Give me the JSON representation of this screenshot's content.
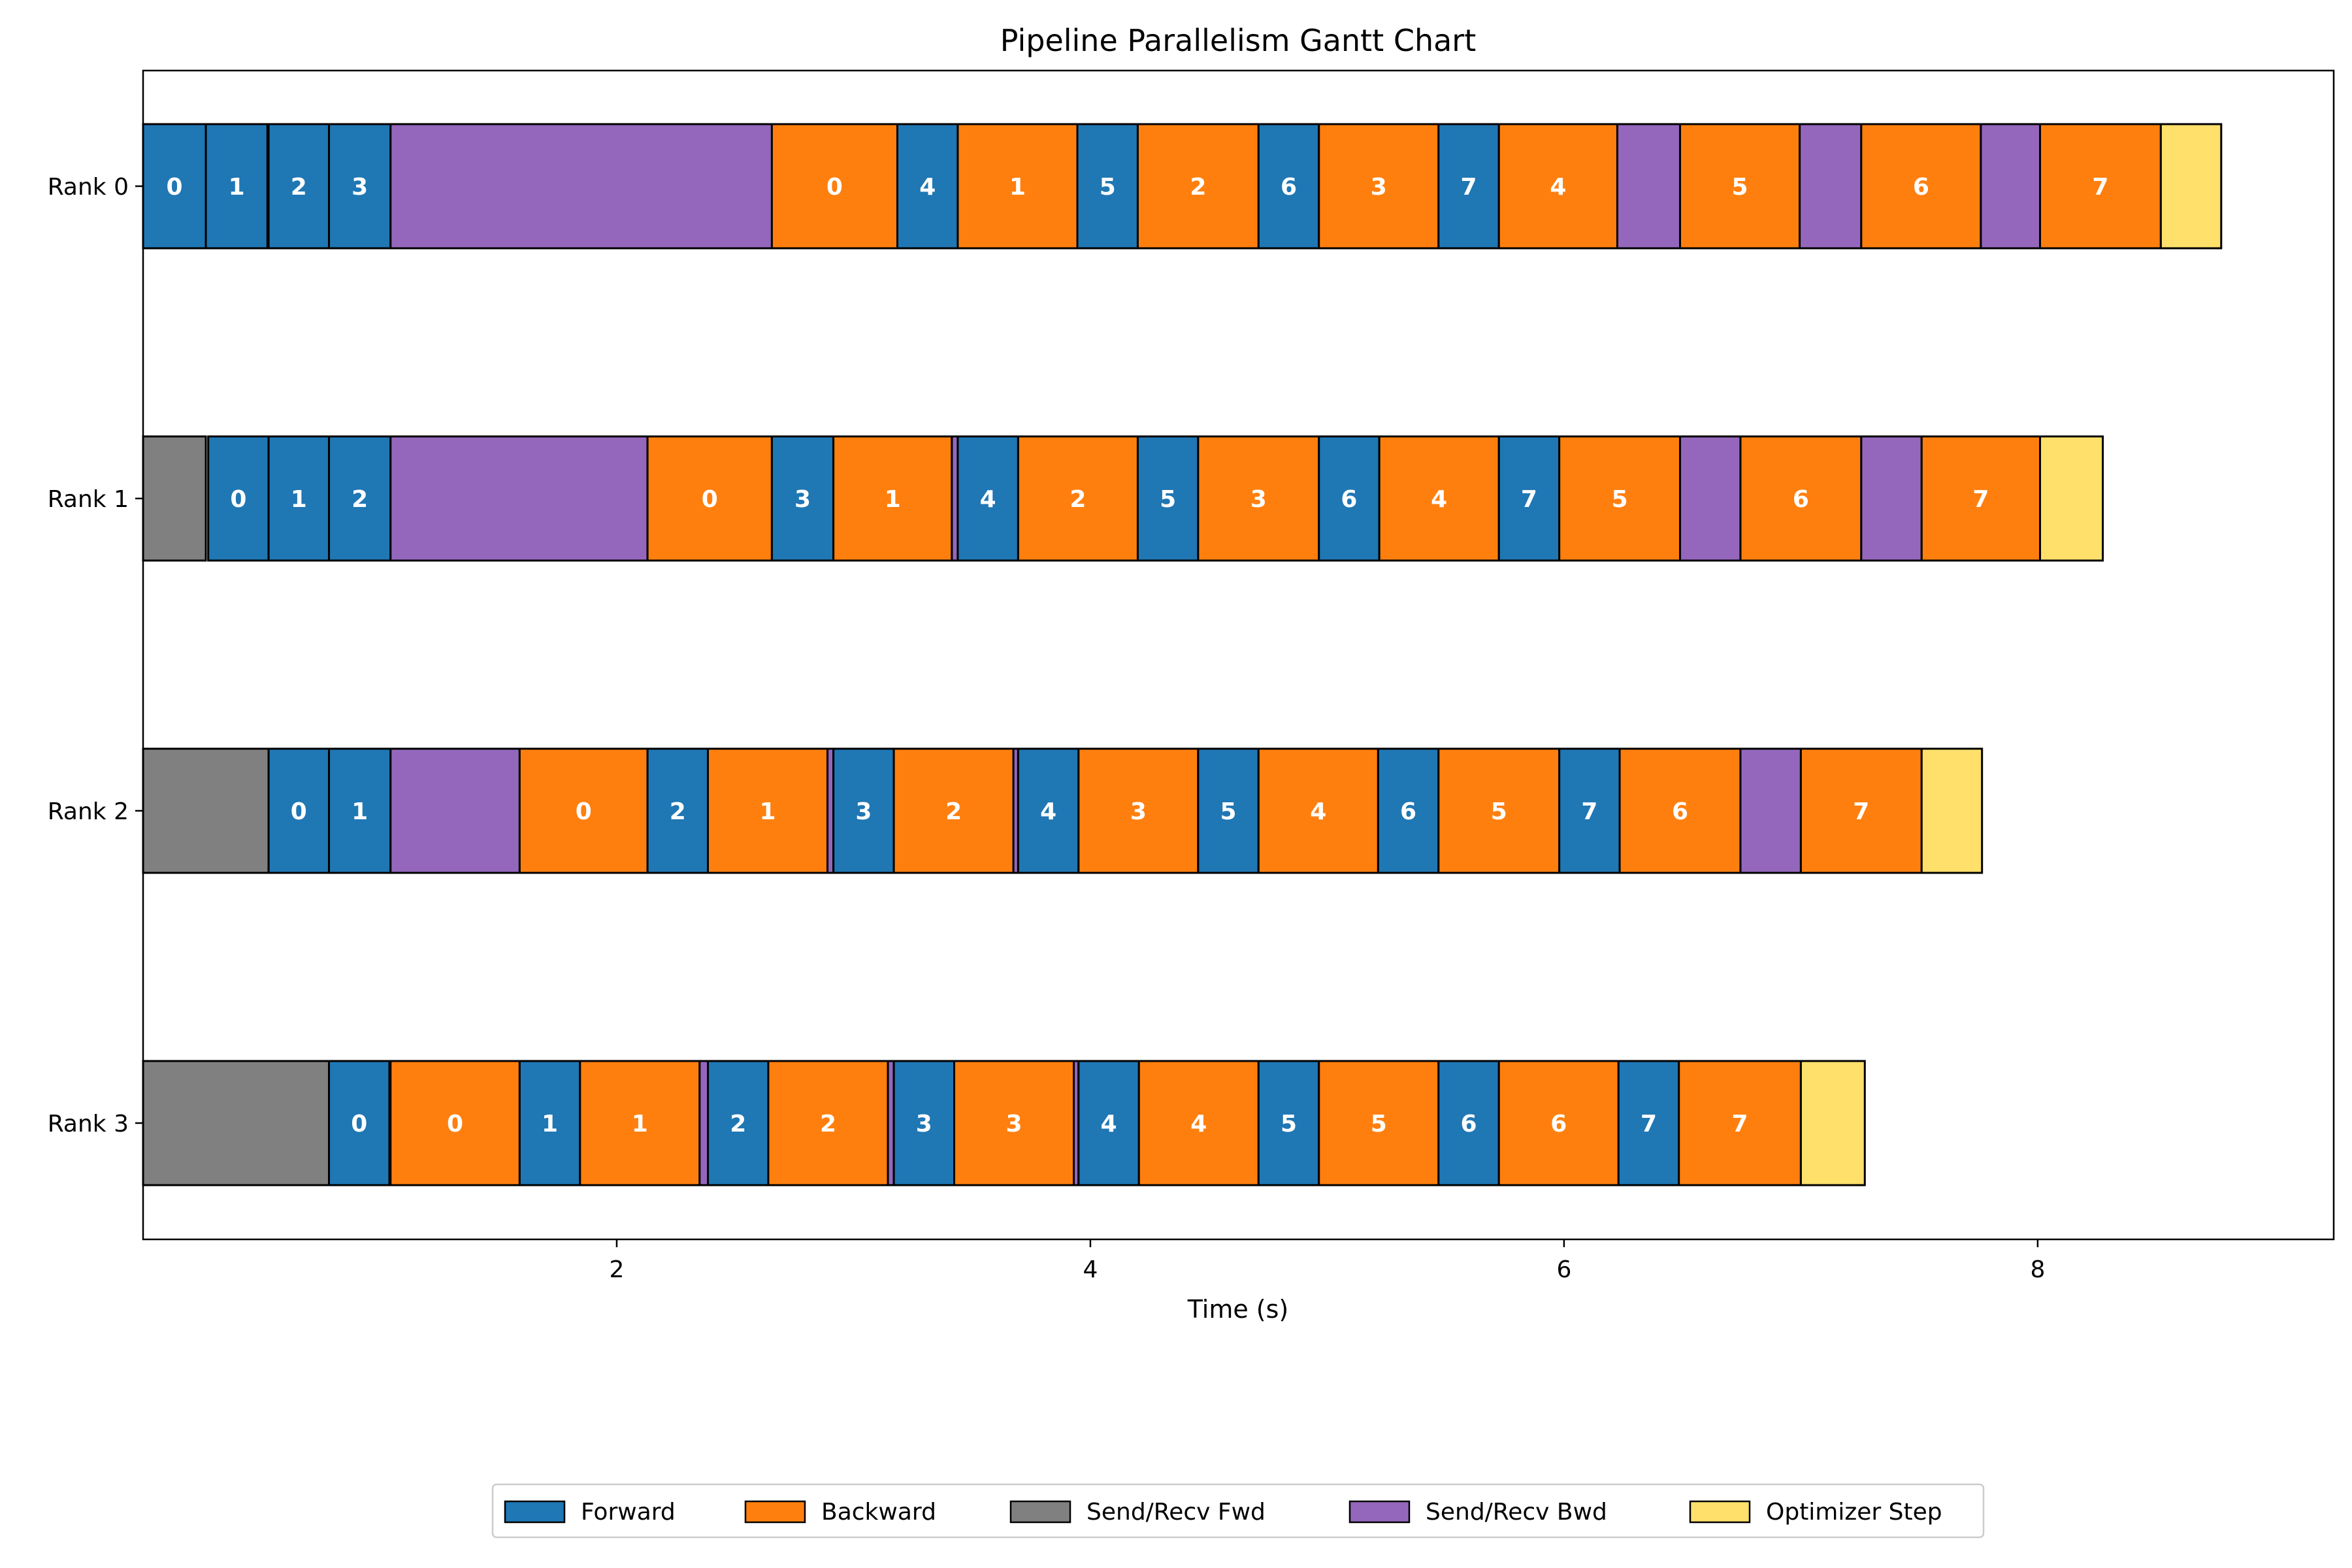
{
  "chart_data": {
    "type": "gantt",
    "title": "Pipeline Parallelism Gantt Chart",
    "xlabel": "Time (s)",
    "ylabel": "",
    "xlim": [
      0,
      9.25
    ],
    "xticks": [
      2,
      4,
      6,
      8
    ],
    "grid": false,
    "legend_position": "bottom-center",
    "rows": [
      "Rank 0",
      "Rank 1",
      "Rank 2",
      "Rank 3"
    ],
    "categories": [
      {
        "key": "fwd",
        "label": "Forward",
        "color": "#1f77b4"
      },
      {
        "key": "bwd",
        "label": "Backward",
        "color": "#ff7f0e"
      },
      {
        "key": "srf",
        "label": "Send/Recv Fwd",
        "color": "#808080"
      },
      {
        "key": "srb",
        "label": "Send/Recv Bwd",
        "color": "#9467bd"
      },
      {
        "key": "opt",
        "label": "Optimizer Step",
        "color": "#ffe06b"
      }
    ],
    "tasks": [
      [
        {
          "type": "fwd",
          "start": 0.0,
          "end": 0.265,
          "label": "0"
        },
        {
          "type": "fwd",
          "start": 0.265,
          "end": 0.525,
          "label": "1"
        },
        {
          "type": "fwd",
          "start": 0.53,
          "end": 0.785,
          "label": "2"
        },
        {
          "type": "fwd",
          "start": 0.785,
          "end": 1.045,
          "label": "3"
        },
        {
          "type": "srb",
          "start": 1.045,
          "end": 2.655,
          "label": ""
        },
        {
          "type": "bwd",
          "start": 2.655,
          "end": 3.185,
          "label": "0"
        },
        {
          "type": "fwd",
          "start": 3.185,
          "end": 3.44,
          "label": "4"
        },
        {
          "type": "bwd",
          "start": 3.44,
          "end": 3.945,
          "label": "1"
        },
        {
          "type": "fwd",
          "start": 3.945,
          "end": 4.2,
          "label": "5"
        },
        {
          "type": "bwd",
          "start": 4.2,
          "end": 4.71,
          "label": "2"
        },
        {
          "type": "fwd",
          "start": 4.71,
          "end": 4.965,
          "label": "6"
        },
        {
          "type": "bwd",
          "start": 4.965,
          "end": 5.47,
          "label": "3"
        },
        {
          "type": "fwd",
          "start": 5.47,
          "end": 5.725,
          "label": "7"
        },
        {
          "type": "bwd",
          "start": 5.725,
          "end": 6.225,
          "label": "4"
        },
        {
          "type": "srb",
          "start": 6.225,
          "end": 6.49,
          "label": ""
        },
        {
          "type": "bwd",
          "start": 6.49,
          "end": 6.995,
          "label": "5"
        },
        {
          "type": "srb",
          "start": 6.995,
          "end": 7.255,
          "label": ""
        },
        {
          "type": "bwd",
          "start": 7.255,
          "end": 7.76,
          "label": "6"
        },
        {
          "type": "srb",
          "start": 7.76,
          "end": 8.01,
          "label": ""
        },
        {
          "type": "bwd",
          "start": 8.01,
          "end": 8.52,
          "label": "7"
        },
        {
          "type": "opt",
          "start": 8.52,
          "end": 8.775,
          "label": ""
        }
      ],
      [
        {
          "type": "srf",
          "start": 0.0,
          "end": 0.265,
          "label": ""
        },
        {
          "type": "fwd",
          "start": 0.275,
          "end": 0.53,
          "label": "0"
        },
        {
          "type": "fwd",
          "start": 0.53,
          "end": 0.785,
          "label": "1"
        },
        {
          "type": "fwd",
          "start": 0.785,
          "end": 1.045,
          "label": "2"
        },
        {
          "type": "srb",
          "start": 1.045,
          "end": 2.13,
          "label": ""
        },
        {
          "type": "bwd",
          "start": 2.13,
          "end": 2.655,
          "label": "0"
        },
        {
          "type": "fwd",
          "start": 2.655,
          "end": 2.915,
          "label": "3"
        },
        {
          "type": "bwd",
          "start": 2.915,
          "end": 3.415,
          "label": "1"
        },
        {
          "type": "srb",
          "start": 3.415,
          "end": 3.44,
          "label": ""
        },
        {
          "type": "fwd",
          "start": 3.44,
          "end": 3.695,
          "label": "4"
        },
        {
          "type": "bwd",
          "start": 3.695,
          "end": 4.2,
          "label": "2"
        },
        {
          "type": "fwd",
          "start": 4.2,
          "end": 4.455,
          "label": "5"
        },
        {
          "type": "bwd",
          "start": 4.455,
          "end": 4.965,
          "label": "3"
        },
        {
          "type": "fwd",
          "start": 4.965,
          "end": 5.22,
          "label": "6"
        },
        {
          "type": "bwd",
          "start": 5.22,
          "end": 5.725,
          "label": "4"
        },
        {
          "type": "fwd",
          "start": 5.725,
          "end": 5.98,
          "label": "7"
        },
        {
          "type": "bwd",
          "start": 5.98,
          "end": 6.49,
          "label": "5"
        },
        {
          "type": "srb",
          "start": 6.49,
          "end": 6.745,
          "label": ""
        },
        {
          "type": "bwd",
          "start": 6.745,
          "end": 7.255,
          "label": "6"
        },
        {
          "type": "srb",
          "start": 7.255,
          "end": 7.51,
          "label": ""
        },
        {
          "type": "bwd",
          "start": 7.51,
          "end": 8.01,
          "label": "7"
        },
        {
          "type": "opt",
          "start": 8.01,
          "end": 8.275,
          "label": ""
        }
      ],
      [
        {
          "type": "srf",
          "start": 0.0,
          "end": 0.53,
          "label": ""
        },
        {
          "type": "fwd",
          "start": 0.53,
          "end": 0.785,
          "label": "0"
        },
        {
          "type": "fwd",
          "start": 0.785,
          "end": 1.045,
          "label": "1"
        },
        {
          "type": "srb",
          "start": 1.045,
          "end": 1.59,
          "label": ""
        },
        {
          "type": "bwd",
          "start": 1.59,
          "end": 2.13,
          "label": "0"
        },
        {
          "type": "fwd",
          "start": 2.13,
          "end": 2.385,
          "label": "2"
        },
        {
          "type": "bwd",
          "start": 2.385,
          "end": 2.89,
          "label": "1"
        },
        {
          "type": "srb",
          "start": 2.89,
          "end": 2.915,
          "label": ""
        },
        {
          "type": "fwd",
          "start": 2.915,
          "end": 3.17,
          "label": "3"
        },
        {
          "type": "bwd",
          "start": 3.17,
          "end": 3.675,
          "label": "2"
        },
        {
          "type": "srb",
          "start": 3.675,
          "end": 3.695,
          "label": ""
        },
        {
          "type": "fwd",
          "start": 3.695,
          "end": 3.95,
          "label": "4"
        },
        {
          "type": "bwd",
          "start": 3.95,
          "end": 4.455,
          "label": "3"
        },
        {
          "type": "fwd",
          "start": 4.455,
          "end": 4.71,
          "label": "5"
        },
        {
          "type": "bwd",
          "start": 4.71,
          "end": 5.215,
          "label": "4"
        },
        {
          "type": "fwd",
          "start": 5.215,
          "end": 5.47,
          "label": "6"
        },
        {
          "type": "bwd",
          "start": 5.47,
          "end": 5.98,
          "label": "5"
        },
        {
          "type": "fwd",
          "start": 5.98,
          "end": 6.235,
          "label": "7"
        },
        {
          "type": "bwd",
          "start": 6.235,
          "end": 6.745,
          "label": "6"
        },
        {
          "type": "srb",
          "start": 6.745,
          "end": 7.0,
          "label": ""
        },
        {
          "type": "bwd",
          "start": 7.0,
          "end": 7.51,
          "label": "7"
        },
        {
          "type": "opt",
          "start": 7.51,
          "end": 7.765,
          "label": ""
        }
      ],
      [
        {
          "type": "srf",
          "start": 0.0,
          "end": 0.785,
          "label": ""
        },
        {
          "type": "fwd",
          "start": 0.785,
          "end": 1.04,
          "label": "0"
        },
        {
          "type": "bwd",
          "start": 1.045,
          "end": 1.59,
          "label": "0"
        },
        {
          "type": "fwd",
          "start": 1.59,
          "end": 1.845,
          "label": "1"
        },
        {
          "type": "bwd",
          "start": 1.845,
          "end": 2.35,
          "label": "1"
        },
        {
          "type": "srb",
          "start": 2.35,
          "end": 2.385,
          "label": ""
        },
        {
          "type": "fwd",
          "start": 2.385,
          "end": 2.64,
          "label": "2"
        },
        {
          "type": "bwd",
          "start": 2.64,
          "end": 3.145,
          "label": "2"
        },
        {
          "type": "srb",
          "start": 3.145,
          "end": 3.17,
          "label": ""
        },
        {
          "type": "fwd",
          "start": 3.17,
          "end": 3.425,
          "label": "3"
        },
        {
          "type": "bwd",
          "start": 3.425,
          "end": 3.93,
          "label": "3"
        },
        {
          "type": "srb",
          "start": 3.93,
          "end": 3.95,
          "label": ""
        },
        {
          "type": "fwd",
          "start": 3.95,
          "end": 4.205,
          "label": "4"
        },
        {
          "type": "bwd",
          "start": 4.205,
          "end": 4.71,
          "label": "4"
        },
        {
          "type": "fwd",
          "start": 4.71,
          "end": 4.965,
          "label": "5"
        },
        {
          "type": "bwd",
          "start": 4.965,
          "end": 5.47,
          "label": "5"
        },
        {
          "type": "fwd",
          "start": 5.47,
          "end": 5.725,
          "label": "6"
        },
        {
          "type": "bwd",
          "start": 5.725,
          "end": 6.23,
          "label": "6"
        },
        {
          "type": "fwd",
          "start": 6.23,
          "end": 6.485,
          "label": "7"
        },
        {
          "type": "bwd",
          "start": 6.485,
          "end": 7.0,
          "label": "7"
        },
        {
          "type": "opt",
          "start": 7.0,
          "end": 7.27,
          "label": ""
        }
      ]
    ]
  }
}
